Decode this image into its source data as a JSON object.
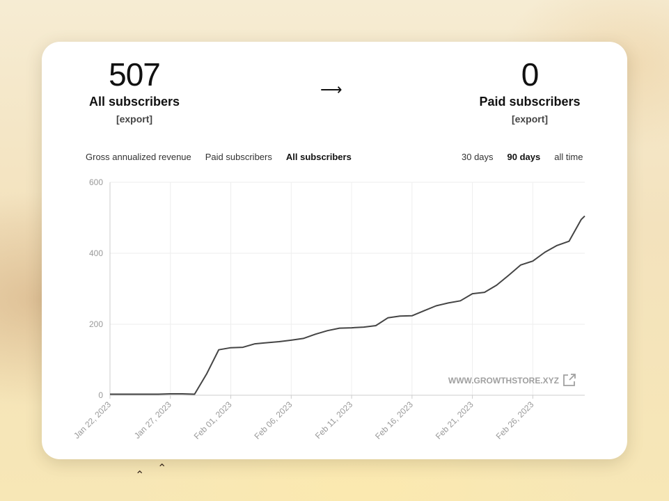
{
  "summary": {
    "all_subscribers": {
      "value": "507",
      "label": "All subscribers",
      "export": "[export]"
    },
    "arrow": "⟶",
    "paid_subscribers": {
      "value": "0",
      "label": "Paid subscribers",
      "export": "[export]"
    }
  },
  "metric_tabs": [
    {
      "label": "Gross annualized revenue",
      "active": false
    },
    {
      "label": "Paid subscribers",
      "active": false
    },
    {
      "label": "All subscribers",
      "active": true
    }
  ],
  "range_tabs": [
    {
      "label": "30 days",
      "active": false
    },
    {
      "label": "90 days",
      "active": true
    },
    {
      "label": "all time",
      "active": false
    }
  ],
  "watermark": "WWW.GROWTHSTORE.XYZ",
  "colors": {
    "line": "#444444",
    "grid": "#eeeeee",
    "axis": "#cccccc",
    "tick_text": "#999999"
  },
  "chart_data": {
    "type": "line",
    "title": "",
    "xlabel": "",
    "ylabel": "",
    "ylim": [
      0,
      600
    ],
    "y_ticks": [
      0,
      200,
      400,
      600
    ],
    "x_ticks": [
      "Jan 22, 2023",
      "Jan 27, 2023",
      "Feb 01, 2023",
      "Feb 06, 2023",
      "Feb 11, 2023",
      "Feb 16, 2023",
      "Feb 21, 2023",
      "Feb 26, 2023"
    ],
    "grid": true,
    "series": [
      {
        "x": [
          "2023-01-22",
          "2023-01-23",
          "2023-01-24",
          "2023-01-25",
          "2023-01-26",
          "2023-01-27",
          "2023-01-28",
          "2023-01-29",
          "2023-01-30",
          "2023-01-31",
          "2023-02-01",
          "2023-02-02",
          "2023-02-03",
          "2023-02-04",
          "2023-02-05",
          "2023-02-06",
          "2023-02-07",
          "2023-02-08",
          "2023-02-09",
          "2023-02-10",
          "2023-02-11",
          "2023-02-12",
          "2023-02-13",
          "2023-02-14",
          "2023-02-15",
          "2023-02-16",
          "2023-02-17",
          "2023-02-18",
          "2023-02-19",
          "2023-02-20",
          "2023-02-21",
          "2023-02-22",
          "2023-02-23",
          "2023-02-24",
          "2023-02-25",
          "2023-02-26",
          "2023-02-27",
          "2023-02-28",
          "2023-03-01",
          "2023-03-02"
        ],
        "values": [
          3,
          3,
          3,
          3,
          3,
          4,
          4,
          3,
          60,
          128,
          134,
          135,
          145,
          148,
          151,
          155,
          160,
          172,
          182,
          189,
          190,
          192,
          196,
          218,
          223,
          224,
          238,
          252,
          260,
          266,
          286,
          290,
          310,
          338,
          367,
          378,
          403,
          422,
          434,
          495
        ]
      }
    ],
    "end_value": 505
  }
}
